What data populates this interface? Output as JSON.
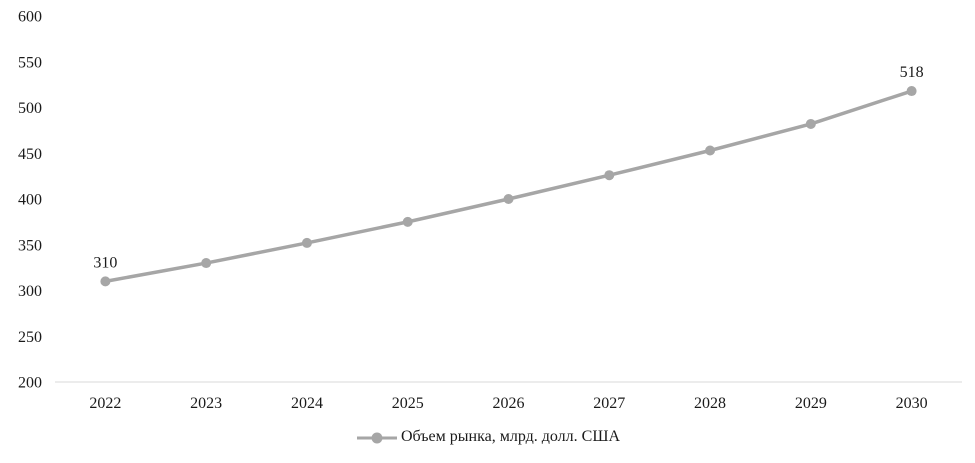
{
  "chart_data": {
    "type": "line",
    "title": "",
    "categories": [
      "2022",
      "2023",
      "2024",
      "2025",
      "2026",
      "2027",
      "2028",
      "2029",
      "2030"
    ],
    "series": [
      {
        "name": "Объем рынка, млрд. долл. США",
        "values": [
          310,
          330,
          352,
          375,
          400,
          426,
          453,
          482,
          518
        ],
        "color": "#a6a6a6"
      }
    ],
    "xlabel": "",
    "ylabel": "",
    "ylim": [
      200,
      600
    ],
    "y_ticks": [
      200,
      250,
      300,
      350,
      400,
      450,
      500,
      550,
      600
    ],
    "grid": false,
    "legend_position": "bottom",
    "annotations": [
      {
        "category": "2022",
        "text": "310"
      },
      {
        "category": "2030",
        "text": "518"
      }
    ]
  },
  "legend": {
    "label": "Объем рынка, млрд. долл. США"
  },
  "colors": {
    "line": "#a6a6a6",
    "marker": "#a6a6a6",
    "text": "#1a1a1a",
    "axis_line": "#d9d9d9",
    "background": "#ffffff"
  }
}
